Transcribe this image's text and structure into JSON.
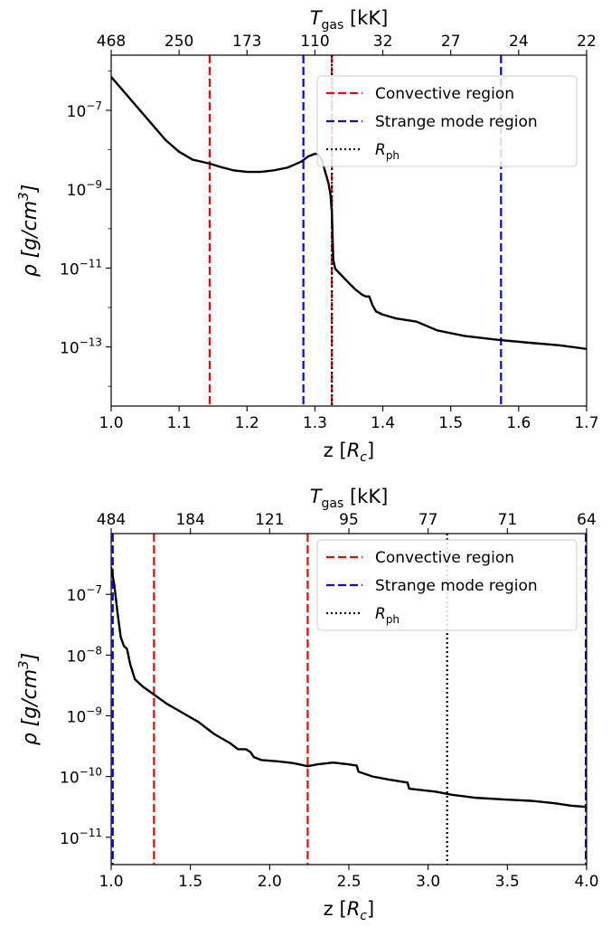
{
  "chart_data": [
    {
      "type": "line",
      "xlabel": "z [",
      "xlabel_var": "R",
      "xlabel_sub": "c",
      "xlabel_end": "]",
      "ylabel": "ρ [g/cm",
      "ylabel_sup": "3",
      "ylabel_end": "]",
      "top_label": "T",
      "top_label_sub": "gas",
      "top_label_end": " [kK]",
      "xlim": [
        1.0,
        1.7
      ],
      "y_log": true,
      "ylim_log10": [
        -14.5,
        -5.6
      ],
      "x_ticks": [
        {
          "v": 1.0,
          "t": "1.0"
        },
        {
          "v": 1.1,
          "t": "1.1"
        },
        {
          "v": 1.2,
          "t": "1.2"
        },
        {
          "v": 1.3,
          "t": "1.3"
        },
        {
          "v": 1.4,
          "t": "1.4"
        },
        {
          "v": 1.5,
          "t": "1.5"
        },
        {
          "v": 1.6,
          "t": "1.6"
        },
        {
          "v": 1.7,
          "t": "1.7"
        }
      ],
      "y_ticks": [
        {
          "v": -7,
          "base": "10",
          "exp": "−7"
        },
        {
          "v": -9,
          "base": "10",
          "exp": "−9"
        },
        {
          "v": -11,
          "base": "10",
          "exp": "−11"
        },
        {
          "v": -13,
          "base": "10",
          "exp": "−13"
        }
      ],
      "y_minor_log10": [
        -6,
        -8,
        -10,
        -12,
        -14
      ],
      "top_ticks": [
        {
          "v": 1.0,
          "t": "468"
        },
        {
          "v": 1.1,
          "t": "250"
        },
        {
          "v": 1.2,
          "t": "173"
        },
        {
          "v": 1.3,
          "t": "110"
        },
        {
          "v": 1.4,
          "t": "32"
        },
        {
          "v": 1.5,
          "t": "27"
        },
        {
          "v": 1.6,
          "t": "24"
        },
        {
          "v": 1.7,
          "t": "22"
        }
      ],
      "legend": {
        "position": "top-right",
        "items": [
          {
            "label": "Convective region",
            "color": "#ff0000",
            "dash": "dashed"
          },
          {
            "label": "Strange mode region",
            "color": "#0000ff",
            "dash": "dashed"
          },
          {
            "label": "R",
            "label_sub": "ph",
            "color": "#000000",
            "dash": "dotted"
          }
        ]
      },
      "vlines": [
        {
          "x": 1.145,
          "kind": "convective",
          "color": "#ff0000",
          "dash": "dashed"
        },
        {
          "x": 1.325,
          "kind": "convective",
          "color": "#ff0000",
          "dash": "dashed"
        },
        {
          "x": 1.283,
          "kind": "strange",
          "color": "#0000ff",
          "dash": "dashed"
        },
        {
          "x": 1.574,
          "kind": "strange",
          "color": "#0000ff",
          "dash": "dashed"
        },
        {
          "x": 1.325,
          "kind": "photosphere",
          "color": "#000000",
          "dash": "dotted"
        }
      ],
      "series": [
        {
          "color": "#000000",
          "points": [
            [
              1.0,
              -6.15
            ],
            [
              1.02,
              -6.55
            ],
            [
              1.04,
              -6.95
            ],
            [
              1.06,
              -7.35
            ],
            [
              1.08,
              -7.75
            ],
            [
              1.1,
              -8.05
            ],
            [
              1.12,
              -8.25
            ],
            [
              1.145,
              -8.35
            ],
            [
              1.16,
              -8.43
            ],
            [
              1.18,
              -8.52
            ],
            [
              1.2,
              -8.56
            ],
            [
              1.22,
              -8.56
            ],
            [
              1.24,
              -8.52
            ],
            [
              1.26,
              -8.45
            ],
            [
              1.28,
              -8.3
            ],
            [
              1.29,
              -8.17
            ],
            [
              1.3,
              -8.1
            ],
            [
              1.305,
              -8.12
            ],
            [
              1.31,
              -8.25
            ],
            [
              1.315,
              -8.55
            ],
            [
              1.32,
              -8.85
            ],
            [
              1.323,
              -9.15
            ],
            [
              1.325,
              -9.6
            ],
            [
              1.326,
              -10.2
            ],
            [
              1.327,
              -10.8
            ],
            [
              1.33,
              -11.02
            ],
            [
              1.34,
              -11.2
            ],
            [
              1.35,
              -11.38
            ],
            [
              1.36,
              -11.55
            ],
            [
              1.37,
              -11.68
            ],
            [
              1.375,
              -11.72
            ],
            [
              1.38,
              -11.72
            ],
            [
              1.385,
              -11.95
            ],
            [
              1.39,
              -12.1
            ],
            [
              1.4,
              -12.18
            ],
            [
              1.42,
              -12.28
            ],
            [
              1.45,
              -12.36
            ],
            [
              1.48,
              -12.58
            ],
            [
              1.52,
              -12.72
            ],
            [
              1.57,
              -12.82
            ],
            [
              1.62,
              -12.9
            ],
            [
              1.66,
              -12.96
            ],
            [
              1.7,
              -13.05
            ]
          ]
        }
      ]
    },
    {
      "type": "line",
      "xlabel": "z [",
      "xlabel_var": "R",
      "xlabel_sub": "c",
      "xlabel_end": "]",
      "ylabel": "ρ [g/cm",
      "ylabel_sup": "3",
      "ylabel_end": "]",
      "top_label": "T",
      "top_label_sub": "gas",
      "top_label_end": " [kK]",
      "xlim": [
        1.0,
        4.0
      ],
      "y_log": true,
      "ylim_log10": [
        -11.45,
        -6.0
      ],
      "x_ticks": [
        {
          "v": 1.0,
          "t": "1.0"
        },
        {
          "v": 1.5,
          "t": "1.5"
        },
        {
          "v": 2.0,
          "t": "2.0"
        },
        {
          "v": 2.5,
          "t": "2.5"
        },
        {
          "v": 3.0,
          "t": "3.0"
        },
        {
          "v": 3.5,
          "t": "3.5"
        },
        {
          "v": 4.0,
          "t": "4.0"
        }
      ],
      "y_ticks": [
        {
          "v": -7,
          "base": "10",
          "exp": "−7"
        },
        {
          "v": -8,
          "base": "10",
          "exp": "−8"
        },
        {
          "v": -9,
          "base": "10",
          "exp": "−9"
        },
        {
          "v": -10,
          "base": "10",
          "exp": "−10"
        },
        {
          "v": -11,
          "base": "10",
          "exp": "−11"
        }
      ],
      "y_minor_log10": [],
      "top_ticks": [
        {
          "v": 1.0,
          "t": "484"
        },
        {
          "v": 1.5,
          "t": "184"
        },
        {
          "v": 2.0,
          "t": "121"
        },
        {
          "v": 2.5,
          "t": "95"
        },
        {
          "v": 3.0,
          "t": "77"
        },
        {
          "v": 3.5,
          "t": "71"
        },
        {
          "v": 4.0,
          "t": "64"
        }
      ],
      "legend": {
        "position": "top-right",
        "items": [
          {
            "label": "Convective region",
            "color": "#ff0000",
            "dash": "dashed"
          },
          {
            "label": "Strange mode region",
            "color": "#0000ff",
            "dash": "dashed"
          },
          {
            "label": "R",
            "label_sub": "ph",
            "color": "#000000",
            "dash": "dotted"
          }
        ]
      },
      "vlines": [
        {
          "x": 1.27,
          "kind": "convective",
          "color": "#ff0000",
          "dash": "dashed"
        },
        {
          "x": 2.24,
          "kind": "convective",
          "color": "#ff0000",
          "dash": "dashed"
        },
        {
          "x": 1.01,
          "kind": "strange",
          "color": "#0000ff",
          "dash": "dashed"
        },
        {
          "x": 3.995,
          "kind": "strange",
          "color": "#0000ff",
          "dash": "dashed"
        },
        {
          "x": 3.12,
          "kind": "photosphere",
          "color": "#000000",
          "dash": "dotted"
        }
      ],
      "series": [
        {
          "color": "#000000",
          "points": [
            [
              1.0,
              -6.55
            ],
            [
              1.02,
              -6.85
            ],
            [
              1.04,
              -7.3
            ],
            [
              1.06,
              -7.7
            ],
            [
              1.08,
              -7.85
            ],
            [
              1.1,
              -7.9
            ],
            [
              1.12,
              -8.15
            ],
            [
              1.15,
              -8.4
            ],
            [
              1.2,
              -8.52
            ],
            [
              1.27,
              -8.65
            ],
            [
              1.35,
              -8.8
            ],
            [
              1.45,
              -8.95
            ],
            [
              1.55,
              -9.1
            ],
            [
              1.65,
              -9.3
            ],
            [
              1.75,
              -9.45
            ],
            [
              1.8,
              -9.55
            ],
            [
              1.85,
              -9.55
            ],
            [
              1.88,
              -9.6
            ],
            [
              1.9,
              -9.68
            ],
            [
              1.95,
              -9.73
            ],
            [
              2.05,
              -9.75
            ],
            [
              2.15,
              -9.78
            ],
            [
              2.24,
              -9.83
            ],
            [
              2.3,
              -9.8
            ],
            [
              2.4,
              -9.77
            ],
            [
              2.5,
              -9.8
            ],
            [
              2.55,
              -9.82
            ],
            [
              2.56,
              -9.92
            ],
            [
              2.65,
              -10.0
            ],
            [
              2.75,
              -10.05
            ],
            [
              2.87,
              -10.1
            ],
            [
              2.88,
              -10.2
            ],
            [
              2.95,
              -10.22
            ],
            [
              3.05,
              -10.25
            ],
            [
              3.15,
              -10.3
            ],
            [
              3.3,
              -10.35
            ],
            [
              3.5,
              -10.38
            ],
            [
              3.65,
              -10.4
            ],
            [
              3.8,
              -10.44
            ],
            [
              3.9,
              -10.48
            ],
            [
              4.0,
              -10.5
            ]
          ]
        }
      ]
    }
  ]
}
